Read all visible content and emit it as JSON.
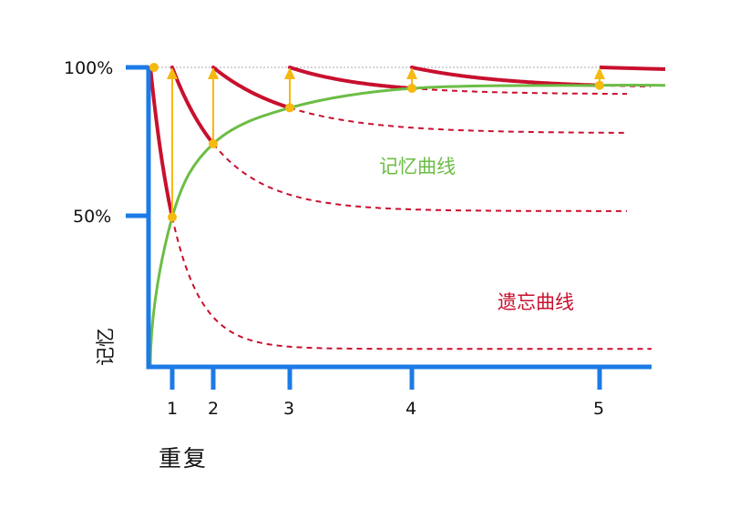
{
  "chart_data": {
    "type": "line",
    "ylabel": "记忆",
    "xlabel": "重复",
    "y_ticks": [
      "100%",
      "50%"
    ],
    "x_ticks": [
      "1",
      "2",
      "3",
      "4",
      "5"
    ],
    "ylim": [
      0,
      100
    ],
    "series": [
      {
        "name": "记忆曲线",
        "color": "#6cbd45",
        "points": [
          [
            0,
            0
          ],
          [
            1,
            50
          ],
          [
            2,
            74.5
          ],
          [
            3,
            86.5
          ],
          [
            4,
            93
          ],
          [
            5,
            94
          ]
        ]
      },
      {
        "name": "遗忘曲线",
        "color": "#c8102e",
        "curves": [
          {
            "start_repetition": 0,
            "next_value": 50,
            "floor": 6
          },
          {
            "start_repetition": 1,
            "next_value": 74.5,
            "floor": 52
          },
          {
            "start_repetition": 2,
            "next_value": 86.5,
            "floor": 78
          },
          {
            "start_repetition": 3,
            "next_value": 93,
            "floor": 91
          },
          {
            "start_repetition": 4,
            "next_value": 94,
            "floor": 93
          }
        ]
      }
    ],
    "annotations": {
      "memory_curve": "记忆曲线",
      "forgetting_curve": "遗忘曲线"
    },
    "colors": {
      "axis": "#1c7be6",
      "review_arrow": "#f5b90f",
      "reference_line": "#aaaaaa"
    }
  }
}
